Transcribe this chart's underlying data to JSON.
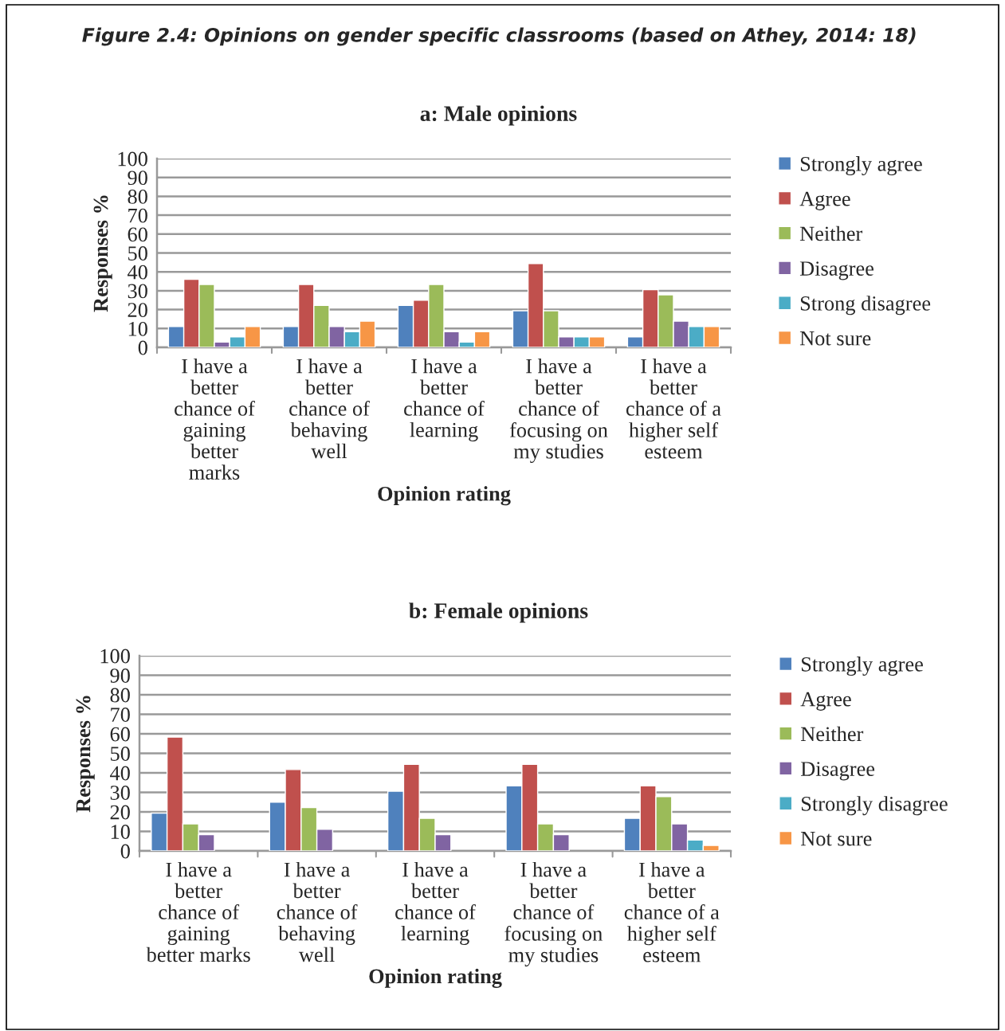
{
  "chart_data": [
    {
      "type": "bar",
      "title": "a: Male opinions",
      "xlabel": "Opinion rating",
      "ylabel": "Responses %",
      "annotations": [
        "Figure 2.4: Opinions on gender specific classrooms (based on Athey, 2014: 18)"
      ],
      "categories": [
        "I have a\nbetter\nchance of\ngaining\nbetter\nmarks",
        "I have a\nbetter\nchance of\nbehaving\nwell",
        "I have a\nbetter\nchance of\nlearning",
        "I have a\nbetter\nchance of\nfocusing on\nmy studies",
        "I have a\nbetter\nchance of a\nhigher self\nesteem"
      ],
      "series": [
        {
          "name": "Strongly agree",
          "color": "#4f81bd",
          "values": [
            11.1,
            11.1,
            22.2,
            19.4,
            5.6
          ]
        },
        {
          "name": "Agree",
          "color": "#c0504d",
          "values": [
            36.1,
            33.3,
            25,
            44.4,
            30.6
          ]
        },
        {
          "name": "Neither",
          "color": "#9bbb59",
          "values": [
            33.3,
            22.2,
            33.3,
            19.4,
            27.8
          ]
        },
        {
          "name": "Disagree",
          "color": "#8064a2",
          "values": [
            2.8,
            11.1,
            8.3,
            5.6,
            13.9
          ]
        },
        {
          "name": "Strong disagree",
          "color": "#4bacc6",
          "values": [
            5.6,
            8.3,
            2.8,
            5.6,
            11.1
          ]
        },
        {
          "name": "Not sure",
          "color": "#f79646",
          "values": [
            11.1,
            13.9,
            8.3,
            5.6,
            11.1
          ]
        }
      ],
      "ylim": [
        0,
        100
      ],
      "yticks": [
        0,
        10,
        20,
        30,
        40,
        50,
        60,
        70,
        80,
        90,
        100
      ],
      "grid": "y",
      "legend": "right"
    },
    {
      "type": "bar",
      "title": "b: Female opinions",
      "xlabel": "Opinion rating",
      "ylabel": "Responses %",
      "categories": [
        "I have a\nbetter\nchance of\ngaining\nbetter marks",
        "I have a\nbetter\nchance of\nbehaving\nwell",
        "I have a\nbetter\nchance of\nlearning",
        "I have a\nbetter\nchance of\nfocusing on\nmy studies",
        "I have a\nbetter\nchance of a\nhigher self\nesteem"
      ],
      "series": [
        {
          "name": "Strongly agree",
          "color": "#4f81bd",
          "values": [
            19.4,
            25,
            30.6,
            33.3,
            16.7
          ]
        },
        {
          "name": "Agree",
          "color": "#c0504d",
          "values": [
            58.3,
            41.7,
            44.4,
            44.4,
            33.3
          ]
        },
        {
          "name": "Neither",
          "color": "#9bbb59",
          "values": [
            13.9,
            22.2,
            16.7,
            13.9,
            27.8
          ]
        },
        {
          "name": "Disagree",
          "color": "#8064a2",
          "values": [
            8.3,
            11.1,
            8.3,
            8.3,
            13.9
          ]
        },
        {
          "name": "Strongly disagree",
          "color": "#4bacc6",
          "values": [
            null,
            null,
            null,
            null,
            5.6
          ]
        },
        {
          "name": "Not sure",
          "color": "#f79646",
          "values": [
            null,
            null,
            null,
            null,
            2.8
          ]
        }
      ],
      "ylim": [
        0,
        100
      ],
      "yticks": [
        0,
        10,
        20,
        30,
        40,
        50,
        60,
        70,
        80,
        90,
        100
      ],
      "grid": "y",
      "legend": "right"
    }
  ]
}
